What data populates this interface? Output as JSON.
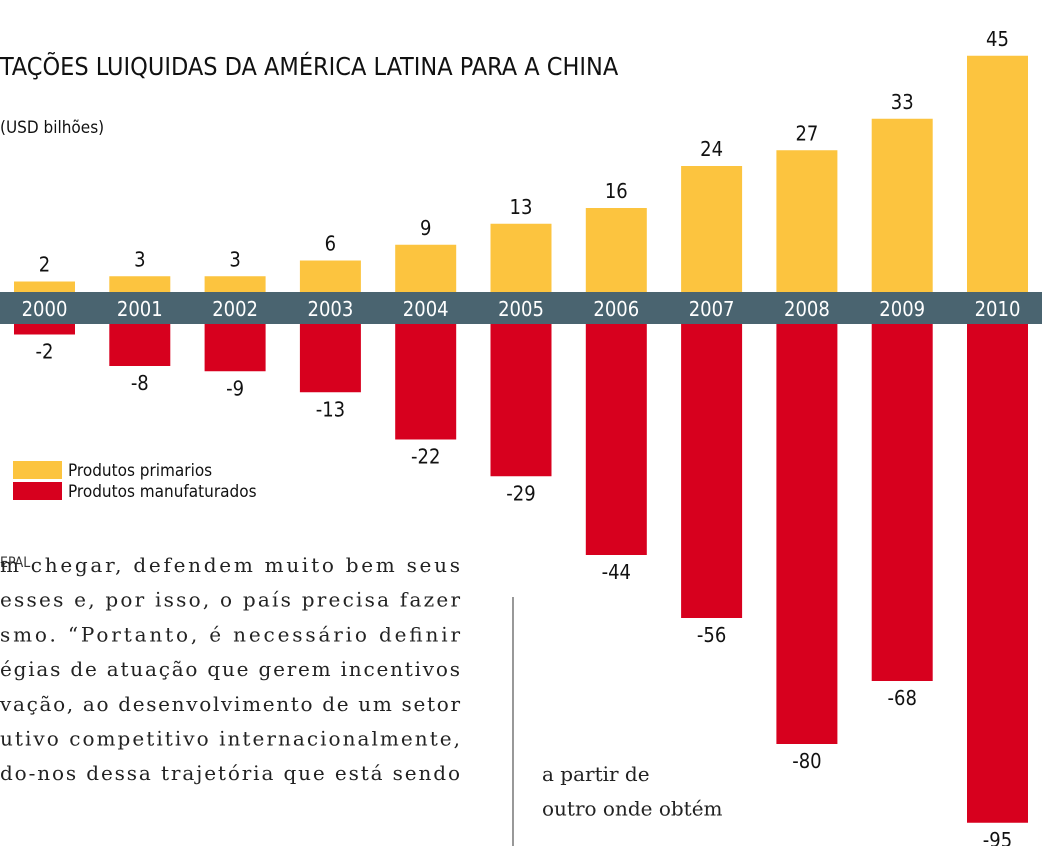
{
  "chart_data": {
    "type": "bar",
    "title": "TAÇÕES LUIQUIDAS DA AMÉRICA LATINA PARA A CHINA",
    "subtitle": "(USD bilhões)",
    "source": "EPAL",
    "categories": [
      "2000",
      "2001",
      "2002",
      "2003",
      "2004",
      "2005",
      "2006",
      "2007",
      "2008",
      "2009",
      "2010"
    ],
    "series": [
      {
        "name": "Produtos primarios",
        "color": "#fcc43f",
        "values": [
          2,
          3,
          3,
          6,
          9,
          13,
          16,
          24,
          27,
          33,
          45
        ]
      },
      {
        "name": "Produtos manufaturados",
        "color": "#d7001e",
        "values": [
          -2,
          -8,
          -9,
          -13,
          -22,
          -29,
          -44,
          -56,
          -80,
          -68,
          -95
        ]
      }
    ]
  },
  "article": {
    "left_lines": [
      "m chegar, defendem muito bem seus",
      "esses e, por isso, o país precisa fazer",
      "smo. “Portanto, é necessário definir",
      "égias de atuação que gerem incentivos",
      "vação, ao desenvolvimento de um setor",
      "utivo competitivo internacionalmente,",
      "do-nos dessa trajetória que está sendo"
    ],
    "right_lines": [
      "a partir de",
      "outro  onde  obtém"
    ]
  }
}
